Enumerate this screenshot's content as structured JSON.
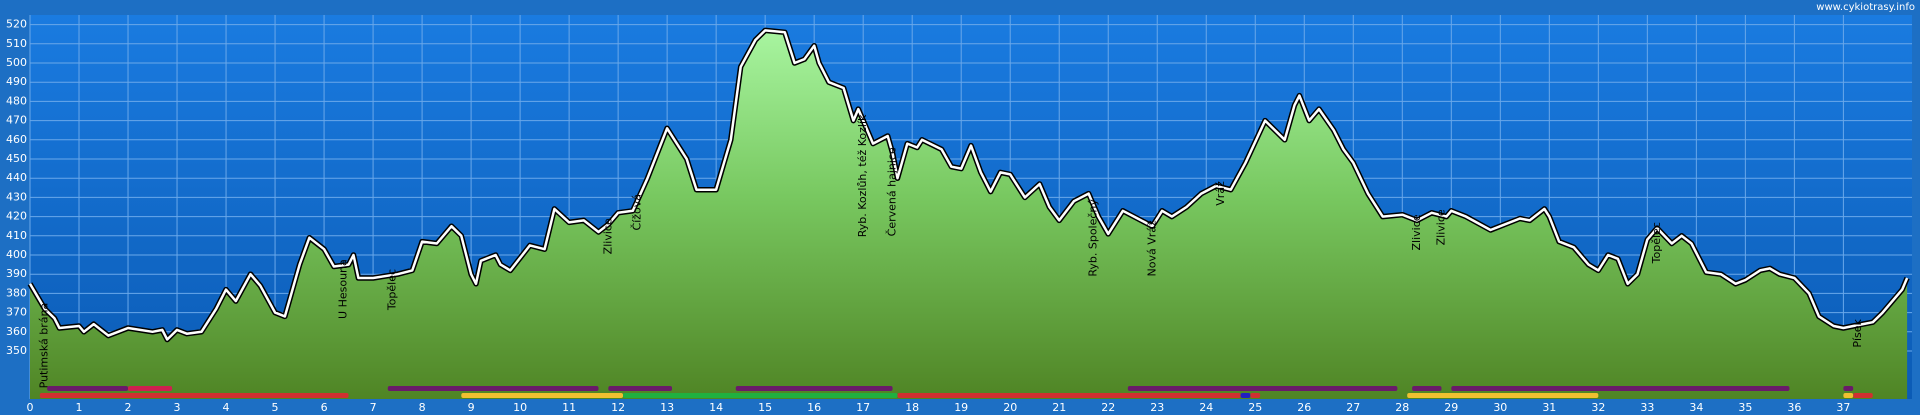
{
  "chart_data": {
    "type": "area",
    "watermark": "www.cykiotrasy.info",
    "x": [
      0,
      0.3,
      0.5,
      0.6,
      1.0,
      1.1,
      1.3,
      1.5,
      1.6,
      2.0,
      2.5,
      2.7,
      2.8,
      3.0,
      3.2,
      3.5,
      3.8,
      4.0,
      4.2,
      4.5,
      4.7,
      5.0,
      5.2,
      5.5,
      5.7,
      6.0,
      6.2,
      6.5,
      6.6,
      6.7,
      7.0,
      7.5,
      7.8,
      8.0,
      8.3,
      8.6,
      8.8,
      9.0,
      9.1,
      9.2,
      9.5,
      9.6,
      9.8,
      10.2,
      10.5,
      10.7,
      11.0,
      11.3,
      11.6,
      11.8,
      12.0,
      12.3,
      12.6,
      13.0,
      13.4,
      13.6,
      14.0,
      14.3,
      14.5,
      14.8,
      15.0,
      15.4,
      15.6,
      15.8,
      16.0,
      16.1,
      16.3,
      16.6,
      16.8,
      16.9,
      17.2,
      17.5,
      17.6,
      17.7,
      17.9,
      18.1,
      18.2,
      18.6,
      18.8,
      19.0,
      19.2,
      19.4,
      19.6,
      19.8,
      20.0,
      20.3,
      20.6,
      20.8,
      21.0,
      21.3,
      21.6,
      21.8,
      22.0,
      22.3,
      22.6,
      22.9,
      23.1,
      23.3,
      23.6,
      23.9,
      24.2,
      24.5,
      24.8,
      25.2,
      25.6,
      25.8,
      25.9,
      26.1,
      26.3,
      26.6,
      26.8,
      27.0,
      27.3,
      27.6,
      28.0,
      28.3,
      28.6,
      28.9,
      29.0,
      29.3,
      29.8,
      30.0,
      30.4,
      30.6,
      30.9,
      31.0,
      31.2,
      31.5,
      31.8,
      32.0,
      32.2,
      32.4,
      32.6,
      32.8,
      33.0,
      33.2,
      33.5,
      33.7,
      33.9,
      34.2,
      34.5,
      34.8,
      35.0,
      35.3,
      35.5,
      35.7,
      36.0,
      36.3,
      36.5,
      36.8,
      37.0,
      37.2,
      37.4,
      37.6,
      37.8,
      38.0,
      38.2,
      38.3
    ],
    "values": [
      385,
      372,
      367,
      362,
      363,
      360,
      364,
      360,
      358,
      362,
      360,
      361,
      356,
      361,
      359,
      360,
      372,
      382,
      376,
      390,
      384,
      370,
      368,
      395,
      409,
      403,
      394,
      395,
      400,
      388,
      388,
      390,
      392,
      407,
      406,
      415,
      410,
      390,
      385,
      397,
      400,
      395,
      392,
      405,
      403,
      424,
      417,
      418,
      412,
      416,
      422,
      423,
      440,
      466,
      450,
      434,
      434,
      460,
      498,
      512,
      517,
      516,
      500,
      502,
      509,
      500,
      490,
      487,
      470,
      476,
      458,
      462,
      453,
      440,
      458,
      456,
      460,
      455,
      446,
      445,
      457,
      443,
      433,
      443,
      442,
      430,
      437,
      425,
      418,
      428,
      432,
      420,
      411,
      423,
      419,
      415,
      423,
      420,
      425,
      432,
      436,
      434,
      448,
      470,
      460,
      478,
      483,
      470,
      476,
      465,
      455,
      448,
      432,
      420,
      421,
      418,
      422,
      420,
      423,
      420,
      413,
      415,
      419,
      418,
      424,
      420,
      407,
      404,
      395,
      392,
      400,
      398,
      385,
      390,
      408,
      414,
      406,
      410,
      406,
      391,
      390,
      385,
      387,
      392,
      393,
      390,
      388,
      380,
      368,
      363,
      362,
      363,
      364,
      365,
      370,
      376,
      382,
      388
    ],
    "xlim": [
      0,
      38.4
    ],
    "ylim": [
      325,
      525
    ],
    "xticks": [
      0,
      1,
      2,
      3,
      4,
      5,
      6,
      7,
      8,
      9,
      10,
      11,
      12,
      13,
      14,
      15,
      16,
      17,
      18,
      19,
      20,
      21,
      22,
      23,
      24,
      25,
      26,
      27,
      28,
      29,
      30,
      31,
      32,
      33,
      34,
      35,
      36,
      37
    ],
    "yticks": [
      350,
      360,
      370,
      380,
      390,
      400,
      410,
      420,
      430,
      440,
      450,
      460,
      470,
      480,
      490,
      500,
      510,
      520
    ],
    "grid": true,
    "waypoints": [
      {
        "x": 0.3,
        "label": "Putimská brána"
      },
      {
        "x": 6.4,
        "label": "U Hesouna"
      },
      {
        "x": 7.4,
        "label": "Topělec"
      },
      {
        "x": 11.8,
        "label": "Zlivice"
      },
      {
        "x": 12.4,
        "label": "Čížová"
      },
      {
        "x": 17.0,
        "label": "Ryb. Kozlůh, též Kozlík"
      },
      {
        "x": 17.6,
        "label": "Červená hajnice"
      },
      {
        "x": 21.7,
        "label": "Ryb. Společný"
      },
      {
        "x": 22.9,
        "label": "Nová Vráž"
      },
      {
        "x": 24.3,
        "label": "Vráž"
      },
      {
        "x": 28.3,
        "label": "Zlivice"
      },
      {
        "x": 28.8,
        "label": "Zlivice"
      },
      {
        "x": 33.2,
        "label": "Topělec"
      },
      {
        "x": 37.3,
        "label": "Písek"
      }
    ],
    "tracks": [
      {
        "from": 0.35,
        "to": 2.0,
        "row": 1,
        "color": "#6a1a6a"
      },
      {
        "from": 2.0,
        "to": 2.9,
        "row": 1,
        "color": "#d02050"
      },
      {
        "from": 7.3,
        "to": 11.6,
        "row": 1,
        "color": "#6a1a6a"
      },
      {
        "from": 11.8,
        "to": 13.1,
        "row": 1,
        "color": "#6a1a6a"
      },
      {
        "from": 14.4,
        "to": 17.6,
        "row": 1,
        "color": "#6a1a6a"
      },
      {
        "from": 22.4,
        "to": 27.9,
        "row": 1,
        "color": "#6a1a6a"
      },
      {
        "from": 28.2,
        "to": 28.8,
        "row": 1,
        "color": "#6a1a6a"
      },
      {
        "from": 29.0,
        "to": 35.9,
        "row": 1,
        "color": "#6a1a6a"
      },
      {
        "from": 37.0,
        "to": 37.2,
        "row": 1,
        "color": "#6a1a6a"
      },
      {
        "from": 0.2,
        "to": 6.5,
        "row": 2,
        "color": "#d03030"
      },
      {
        "from": 8.8,
        "to": 12.1,
        "row": 2,
        "color": "#f0c030"
      },
      {
        "from": 12.1,
        "to": 17.7,
        "row": 2,
        "color": "#20b040"
      },
      {
        "from": 17.7,
        "to": 24.7,
        "row": 2,
        "color": "#d03030"
      },
      {
        "from": 24.7,
        "to": 24.9,
        "row": 2,
        "color": "#2020c0"
      },
      {
        "from": 24.9,
        "to": 25.1,
        "row": 2,
        "color": "#d03030"
      },
      {
        "from": 28.1,
        "to": 32.0,
        "row": 2,
        "color": "#f0c030"
      },
      {
        "from": 37.0,
        "to": 37.2,
        "row": 2,
        "color": "#f0c030"
      },
      {
        "from": 37.2,
        "to": 37.6,
        "row": 2,
        "color": "#d03030"
      }
    ]
  }
}
